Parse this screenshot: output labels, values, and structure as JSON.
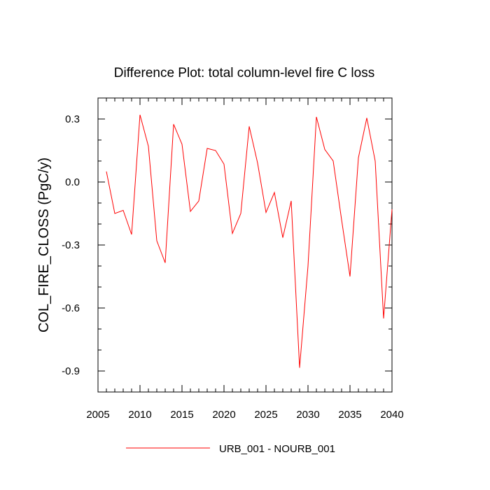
{
  "chart_data": {
    "type": "line",
    "title": "Difference Plot: total column-level fire C loss",
    "xlabel": "",
    "ylabel": "COL_FIRE_CLOSS  (PgC/y)",
    "xlim": [
      2005,
      2040
    ],
    "ylim": [
      -1.0,
      0.4
    ],
    "xticks": [
      2005,
      2010,
      2015,
      2020,
      2025,
      2030,
      2035,
      2040
    ],
    "xtick_labels": [
      "2005",
      "2010",
      "2015",
      "2020",
      "2025",
      "2030",
      "2035",
      "2040"
    ],
    "yticks": [
      -0.9,
      -0.6,
      -0.3,
      0.0,
      0.3
    ],
    "ytick_labels": [
      "-0.9",
      "-0.6",
      "-0.3",
      "0.0",
      "0.3"
    ],
    "grid": false,
    "legend_position": "bottom-center",
    "series": [
      {
        "name": "URB_001 - NOURB_001",
        "color": "#ff0000",
        "x": [
          2006,
          2007,
          2008,
          2009,
          2010,
          2011,
          2012,
          2013,
          2014,
          2015,
          2016,
          2017,
          2018,
          2019,
          2020,
          2021,
          2022,
          2023,
          2024,
          2025,
          2026,
          2027,
          2028,
          2029,
          2030,
          2031,
          2032,
          2033,
          2034,
          2035,
          2036,
          2037,
          2038,
          2039,
          2040
        ],
        "values": [
          0.05,
          -0.15,
          -0.135,
          -0.25,
          0.32,
          0.17,
          -0.28,
          -0.385,
          0.275,
          0.18,
          -0.14,
          -0.09,
          0.16,
          0.15,
          0.085,
          -0.245,
          -0.15,
          0.265,
          0.09,
          -0.145,
          -0.05,
          -0.265,
          -0.09,
          -0.885,
          -0.4,
          0.31,
          0.155,
          0.1,
          -0.18,
          -0.45,
          0.115,
          0.305,
          0.1,
          -0.65,
          -0.13
        ]
      }
    ]
  }
}
